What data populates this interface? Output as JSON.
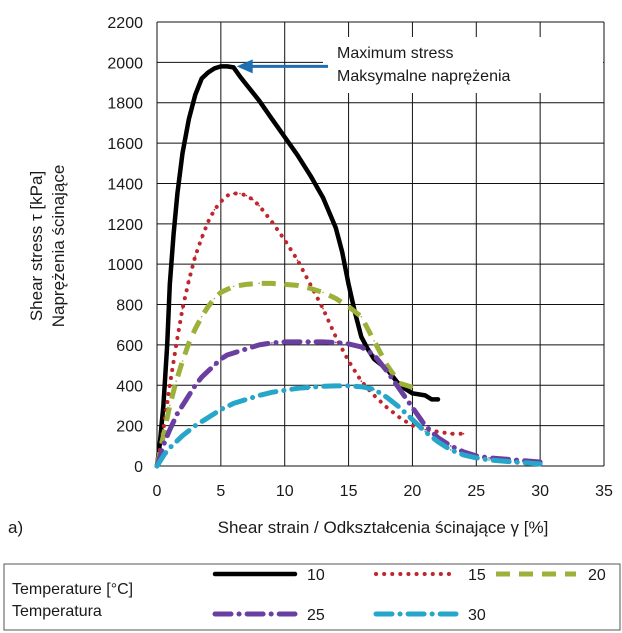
{
  "chart_data": {
    "type": "scatter",
    "panel_label": "a)",
    "xlabel": "Shear strain / Odkształcenia ścinające γ [%]",
    "ylabel_line1": "Shear stress τ [kPa]",
    "ylabel_line2": "Naprężenia ścinające",
    "xlim": [
      0,
      35
    ],
    "ylim": [
      0,
      2200
    ],
    "xticks": [
      0,
      5,
      10,
      15,
      20,
      25,
      30,
      35
    ],
    "yticks": [
      0,
      200,
      400,
      600,
      800,
      1000,
      1200,
      1400,
      1600,
      1800,
      2000,
      2200
    ],
    "grid": true,
    "annotation": {
      "line1": "Maximum stress",
      "line2": "Maksymalne naprężenia",
      "point": [
        5.3,
        1980
      ],
      "arrow_color": "#1f6fb5"
    },
    "legend": {
      "title_line1": "Temperature [°C]",
      "title_line2": "Temperatura",
      "placement": "bottom"
    },
    "series": [
      {
        "name": "10",
        "color": "#000000",
        "style": "solid",
        "x": [
          0,
          0.2,
          0.5,
          0.8,
          1.0,
          1.3,
          1.6,
          2.0,
          2.5,
          3.0,
          3.5,
          4.0,
          4.5,
          5.0,
          5.5,
          6.0,
          6.5,
          7.0,
          8.0,
          9.0,
          10.0,
          11.0,
          12.0,
          13.0,
          14.0,
          14.5,
          15.0,
          15.5,
          16.0,
          16.5,
          17.0,
          18.0,
          19.0,
          20.0,
          21.0,
          21.5,
          22.0
        ],
        "y": [
          0,
          100,
          300,
          600,
          900,
          1150,
          1350,
          1550,
          1720,
          1840,
          1920,
          1950,
          1970,
          1980,
          1980,
          1975,
          1930,
          1890,
          1810,
          1720,
          1630,
          1540,
          1440,
          1330,
          1180,
          1060,
          900,
          760,
          640,
          580,
          530,
          480,
          400,
          360,
          350,
          330,
          330
        ]
      },
      {
        "name": "15",
        "color": "#c0262d",
        "style": "dotted",
        "x": [
          0,
          0.5,
          1.0,
          1.5,
          2.0,
          2.5,
          3.0,
          3.5,
          4.0,
          4.5,
          5.0,
          5.5,
          6.0,
          6.5,
          7.0,
          7.5,
          8.0,
          9.0,
          10.0,
          11.0,
          12.0,
          13.0,
          14.0,
          15.0,
          16.0,
          17.0,
          18.0,
          19.0,
          20.0,
          21.0,
          22.0,
          23.0,
          24.0
        ],
        "y": [
          0,
          180,
          400,
          600,
          780,
          920,
          1040,
          1130,
          1210,
          1270,
          1310,
          1340,
          1350,
          1350,
          1340,
          1320,
          1290,
          1210,
          1120,
          1020,
          900,
          780,
          640,
          520,
          420,
          350,
          290,
          240,
          200,
          180,
          170,
          160,
          160
        ]
      },
      {
        "name": "20",
        "color": "#9bb13a",
        "style": "dashed",
        "x": [
          0,
          0.5,
          1.0,
          1.5,
          2.0,
          2.5,
          3.0,
          3.5,
          4.0,
          4.5,
          5.0,
          5.5,
          6.0,
          7.0,
          8.0,
          9.0,
          10.0,
          11.0,
          12.0,
          13.0,
          14.0,
          15.0,
          16.0,
          17.0,
          18.0,
          19.0,
          20.0
        ],
        "y": [
          0,
          150,
          300,
          420,
          520,
          610,
          680,
          740,
          790,
          830,
          860,
          875,
          890,
          900,
          905,
          905,
          900,
          895,
          880,
          860,
          830,
          790,
          740,
          620,
          500,
          410,
          390
        ]
      },
      {
        "name": "25",
        "color": "#6b3fa0",
        "style": "dashdot",
        "x": [
          0,
          0.3,
          0.6,
          1.0,
          1.3,
          1.6,
          2.0,
          2.5,
          3.0,
          3.5,
          4.0,
          4.5,
          5.0,
          5.5,
          6.0,
          7.0,
          8.0,
          9.0,
          10.0,
          11.0,
          12.0,
          13.0,
          14.0,
          15.0,
          16.0,
          17.0,
          18.0,
          19.0,
          20.0,
          21.0,
          22.0,
          23.0,
          24.0,
          25.0,
          26.0,
          27.0,
          28.0,
          29.0,
          30.0
        ],
        "y": [
          0,
          60,
          120,
          180,
          220,
          260,
          300,
          350,
          400,
          440,
          470,
          500,
          530,
          550,
          560,
          580,
          600,
          610,
          615,
          615,
          615,
          615,
          612,
          605,
          590,
          550,
          470,
          380,
          290,
          200,
          140,
          100,
          70,
          50,
          40,
          35,
          30,
          25,
          20
        ]
      },
      {
        "name": "30",
        "color": "#26a6c9",
        "style": "dashdot",
        "x": [
          0,
          0.3,
          0.6,
          1.0,
          1.5,
          2.0,
          3.0,
          4.0,
          5.0,
          6.0,
          7.0,
          8.0,
          9.0,
          10.0,
          11.0,
          12.0,
          13.0,
          14.0,
          15.0,
          16.0,
          17.0,
          18.0,
          19.0,
          20.0,
          21.0,
          22.0,
          23.0,
          24.0,
          25.0,
          26.0,
          27.0,
          28.0,
          29.0,
          30.0
        ],
        "y": [
          0,
          30,
          60,
          90,
          120,
          150,
          200,
          240,
          280,
          310,
          330,
          350,
          365,
          375,
          385,
          390,
          395,
          397,
          397,
          393,
          380,
          340,
          290,
          230,
          170,
          120,
          80,
          55,
          40,
          30,
          25,
          20,
          15,
          10
        ]
      }
    ]
  }
}
